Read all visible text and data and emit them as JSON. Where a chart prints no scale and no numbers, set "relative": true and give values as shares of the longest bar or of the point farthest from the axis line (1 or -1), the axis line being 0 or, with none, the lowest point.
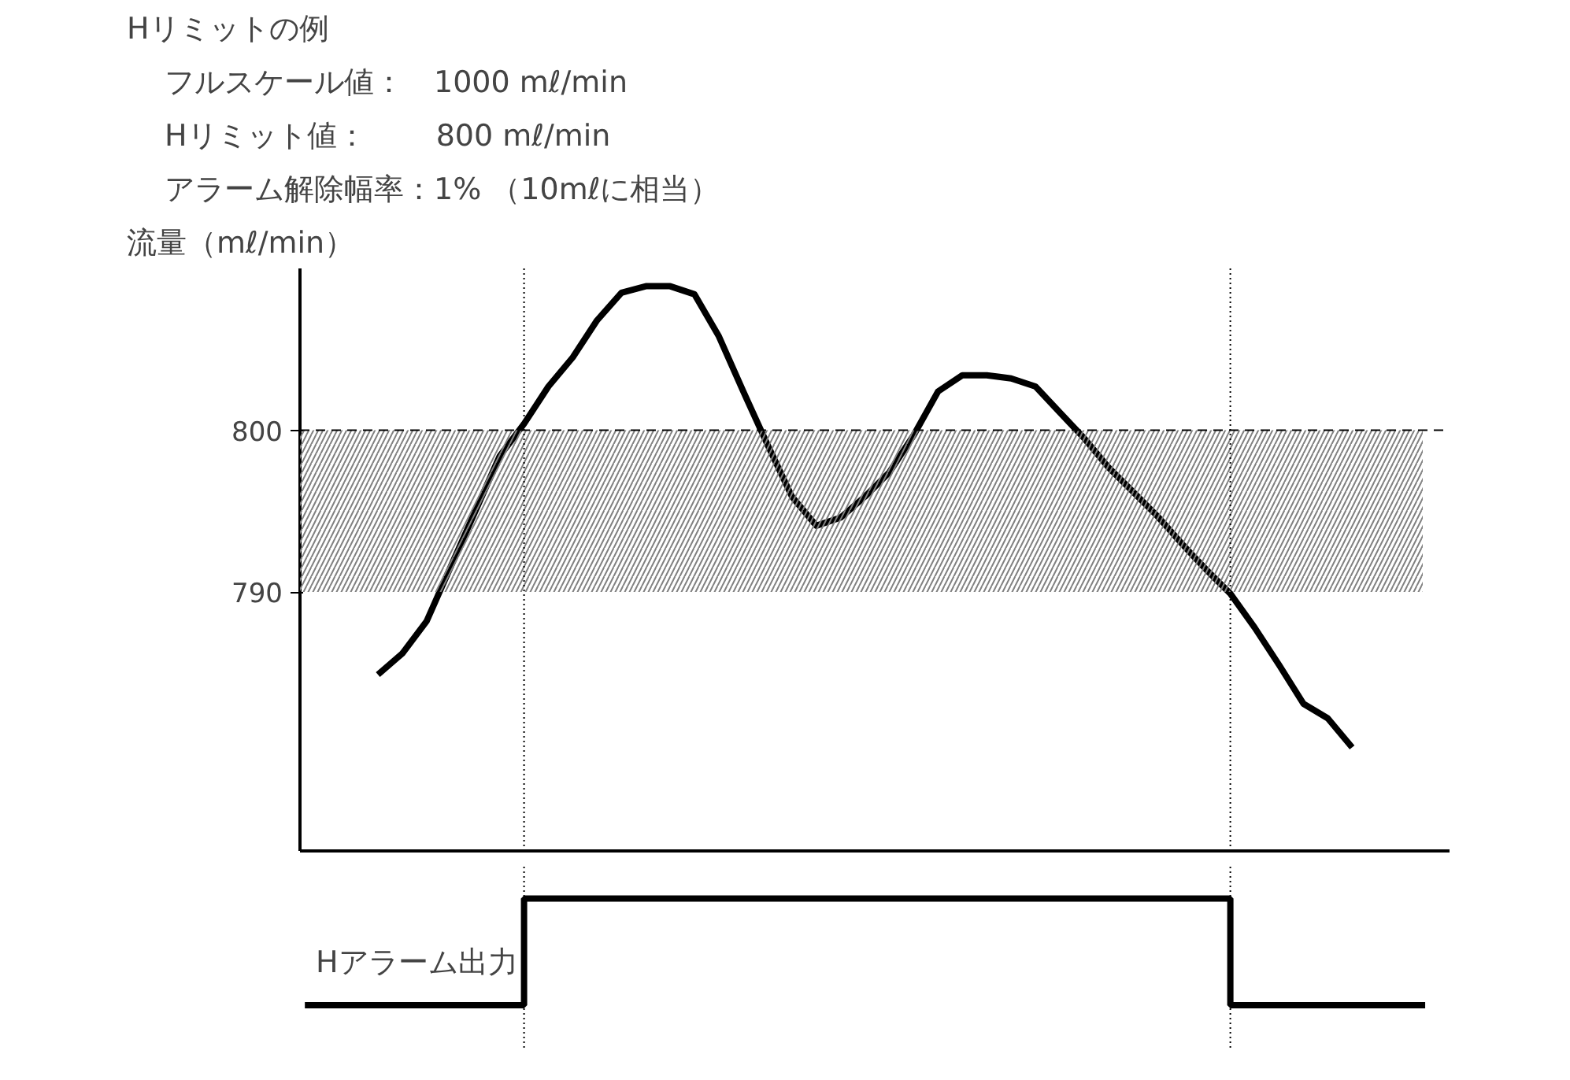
{
  "chart_data": [
    {
      "type": "line",
      "title": "Hリミットの例",
      "ylabel": "流量（mℓ/min）",
      "annotations": [
        "フルスケール値：　1000 mℓ/min",
        "Hリミット値：　　 800 mℓ/min",
        "アラーム解除幅率：1% （10mℓに相当）"
      ],
      "categories": [
        null,
        null,
        null,
        null,
        null,
        null,
        null,
        null,
        null,
        null,
        null,
        null,
        null,
        null,
        null,
        null,
        null,
        null,
        null,
        null,
        null,
        null,
        null,
        null,
        null,
        null,
        null,
        null,
        null,
        null,
        null,
        null,
        null,
        null,
        null,
        null,
        null,
        null,
        null,
        null,
        null,
        null,
        null,
        null,
        null,
        null,
        null
      ],
      "series": [
        {
          "color": "#000000",
          "values": [
            null,
            null,
            null,
            784.9,
            786.2,
            788.2,
            791.6,
            795,
            798.4,
            800.4,
            802.7,
            804.5,
            806.8,
            808.5,
            808.9,
            808.9,
            808.4,
            805.8,
            802.4,
            799.1,
            795.9,
            794.1,
            794.6,
            795.9,
            797.4,
            799.7,
            802.4,
            803.4,
            803.4,
            803.2,
            802.7,
            801.1,
            799.5,
            797.7,
            796.2,
            794.7,
            793,
            791.4,
            789.9,
            787.8,
            785.5,
            783.1,
            782.2,
            780.4,
            null,
            null,
            null
          ]
        }
      ],
      "ylim": [
        774,
        810
      ],
      "yticks": [
        790,
        800
      ],
      "tick_labels": "y",
      "grid": false,
      "ref_lines": [
        {
          "axis": "y",
          "value": 800,
          "line_style": "dashed",
          "color": "#000000"
        }
      ],
      "bands": [
        {
          "axis": "y",
          "from": 790,
          "to": 800,
          "color": "#808080"
        }
      ]
    },
    {
      "type": "step",
      "ylabel": "Hアラーム出力",
      "relative": true,
      "tick_labels": false,
      "categories": [
        null,
        null,
        null,
        null,
        null,
        null,
        null,
        null,
        null,
        null,
        null,
        null,
        null,
        null,
        null,
        null,
        null,
        null,
        null,
        null,
        null,
        null,
        null,
        null,
        null,
        null,
        null,
        null,
        null,
        null,
        null,
        null,
        null,
        null,
        null,
        null,
        null,
        null,
        null,
        null,
        null,
        null,
        null,
        null,
        null,
        null,
        null
      ],
      "series": [
        {
          "color": "#000000",
          "values": [
            0,
            0,
            0,
            0,
            0,
            0,
            0,
            0,
            0,
            1,
            1,
            1,
            1,
            1,
            1,
            1,
            1,
            1,
            1,
            1,
            1,
            1,
            1,
            1,
            1,
            1,
            1,
            1,
            1,
            1,
            1,
            1,
            1,
            1,
            1,
            1,
            1,
            1,
            0,
            0,
            0,
            0,
            0,
            0,
            0,
            0,
            0
          ]
        }
      ]
    }
  ]
}
